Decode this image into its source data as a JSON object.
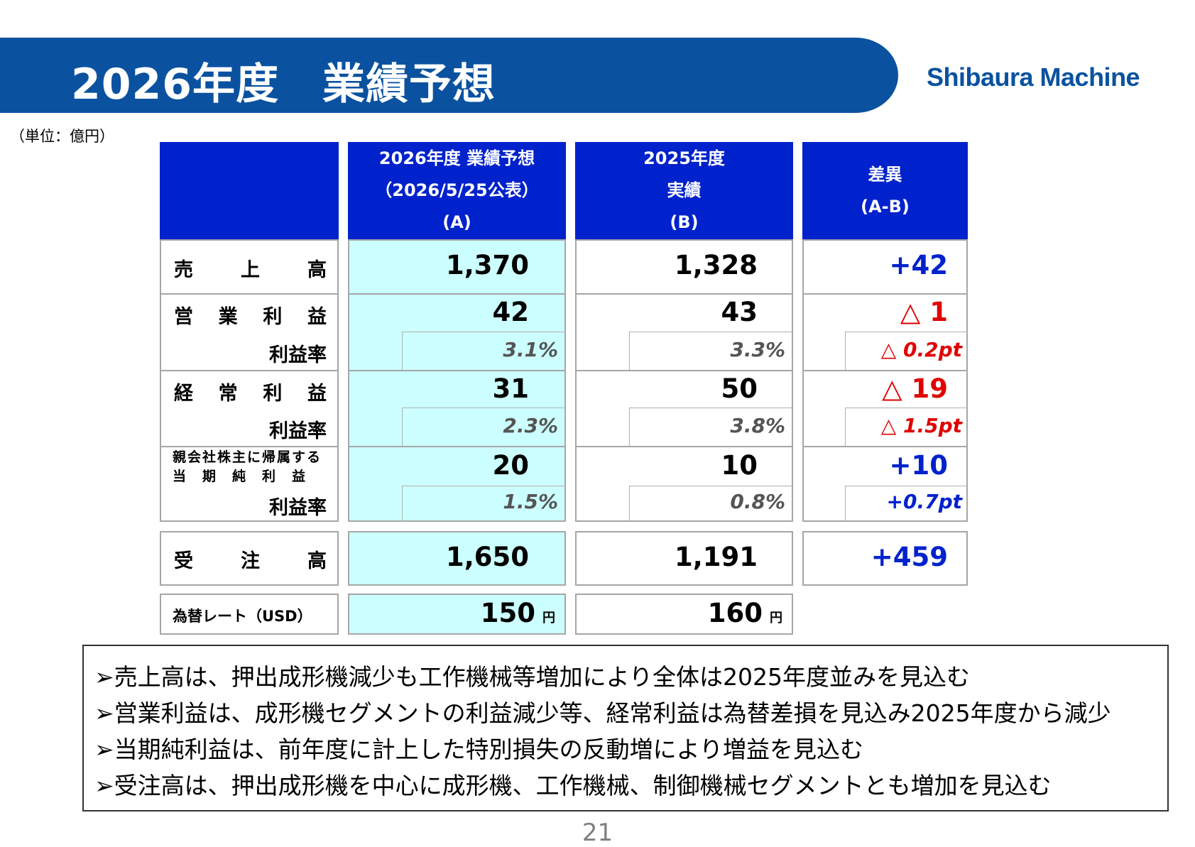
{
  "header": {
    "title": "2026年度　業績予想",
    "logo_text": "Shibaura Machine",
    "brand_color": "#0a52a0"
  },
  "unit_label": "（単位：億円）",
  "table": {
    "columns": [
      {
        "line1": "2026年度 業績予想",
        "line2": "（2026/5/25公表）",
        "line3": "(A)"
      },
      {
        "line1": "2025年度",
        "line2": "実績",
        "line3": "(B)"
      },
      {
        "line1": "差異",
        "line2": "(A-B)"
      }
    ],
    "rows": {
      "sales": {
        "label": "売　上　高",
        "a": "1,370",
        "b": "1,328",
        "diff": "+42"
      },
      "operating": {
        "label": "営 業 利 益",
        "a": "42",
        "b": "43",
        "diff": "△ 1",
        "rate_label": "利益率",
        "a_rate": "3.1%",
        "b_rate": "3.3%",
        "diff_rate": "△ 0.2pt"
      },
      "ordinary": {
        "label": "経 常 利 益",
        "a": "31",
        "b": "50",
        "diff": "△ 19",
        "rate_label": "利益率",
        "a_rate": "2.3%",
        "b_rate": "3.8%",
        "diff_rate": "△ 1.5pt"
      },
      "net": {
        "label_line1": "親会社株主に帰属する",
        "label_line2": "当　期　純　利　益",
        "a": "20",
        "b": "10",
        "diff": "+10",
        "rate_label": "利益率",
        "a_rate": "1.5%",
        "b_rate": "0.8%",
        "diff_rate": "+0.7pt"
      },
      "orders": {
        "label": "受　注　高",
        "a": "1,650",
        "b": "1,191",
        "diff": "+459"
      },
      "fx": {
        "label": "為替レート（USD）",
        "a": "150",
        "b": "160",
        "unit": "円"
      }
    }
  },
  "notes": [
    "➢売上高は、押出成形機減少も工作機械等増加により全体は2025年度並みを見込む",
    "➢営業利益は、成形機セグメントの利益減少等、経常利益は為替差損を見込み2025年度から減少",
    "➢当期純利益は、前年度に計上した特別損失の反動増により増益を見込む",
    "➢受注高は、押出成形機を中心に成形機、工作機械、制御機械セグメントとも増加を見込む"
  ],
  "page_number": "21"
}
